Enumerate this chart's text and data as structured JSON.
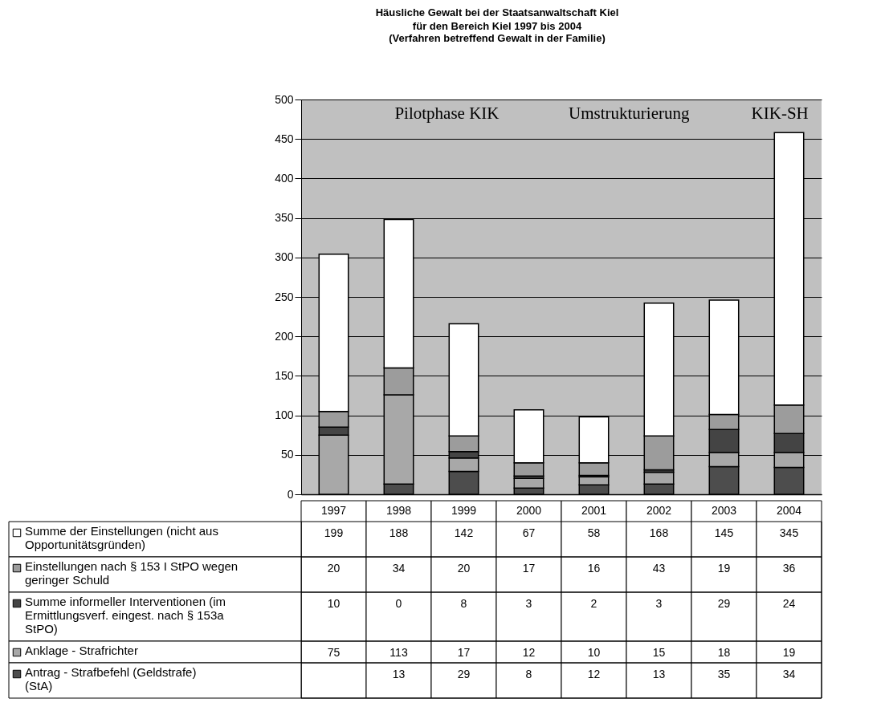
{
  "chart_data": {
    "type": "bar",
    "title": "Häusliche Gewalt bei der Staatsanwaltschaft Kiel für den Bereich Kiel 1997 bis 2004",
    "subtitle": "(Verfahren betreffend Gewalt in der Familie)",
    "categories": [
      "1997",
      "1998",
      "1999",
      "2000",
      "2001",
      "2002",
      "2003",
      "2004"
    ],
    "stacked": true,
    "series": [
      {
        "name": "Antrag - Strafbefehl (Geldstrafe) (StA)",
        "color": "#4d4d4d",
        "values": [
          null,
          13,
          29,
          8,
          12,
          13,
          35,
          34
        ]
      },
      {
        "name": "Anklage - Strafrichter",
        "color": "#a8a8a8",
        "values": [
          75,
          113,
          17,
          12,
          10,
          15,
          18,
          19
        ]
      },
      {
        "name": "Summe informeller Interventionen (im Ermittlungsverf. eingest. nach § 153a StPO)",
        "color": "#444444",
        "values": [
          10,
          0,
          8,
          3,
          2,
          3,
          29,
          24
        ]
      },
      {
        "name": "Einstellungen nach § 153 I StPO wegen geringer Schuld",
        "color": "#9c9c9c",
        "values": [
          20,
          34,
          20,
          17,
          16,
          43,
          19,
          36
        ]
      },
      {
        "name": "Summe der Einstellungen (nicht aus Opportunitätsgründen)",
        "color": "#ffffff",
        "values": [
          199,
          188,
          142,
          67,
          58,
          168,
          145,
          345
        ]
      }
    ],
    "ylim": [
      0,
      500
    ],
    "yticks": [
      0,
      50,
      100,
      150,
      200,
      250,
      300,
      350,
      400,
      450,
      500
    ],
    "grid": "y",
    "legend": "bottom",
    "data_labels": true,
    "annotations": [
      "Pilotphase KIK",
      "Umstrukturierung",
      "KIK-SH"
    ]
  }
}
